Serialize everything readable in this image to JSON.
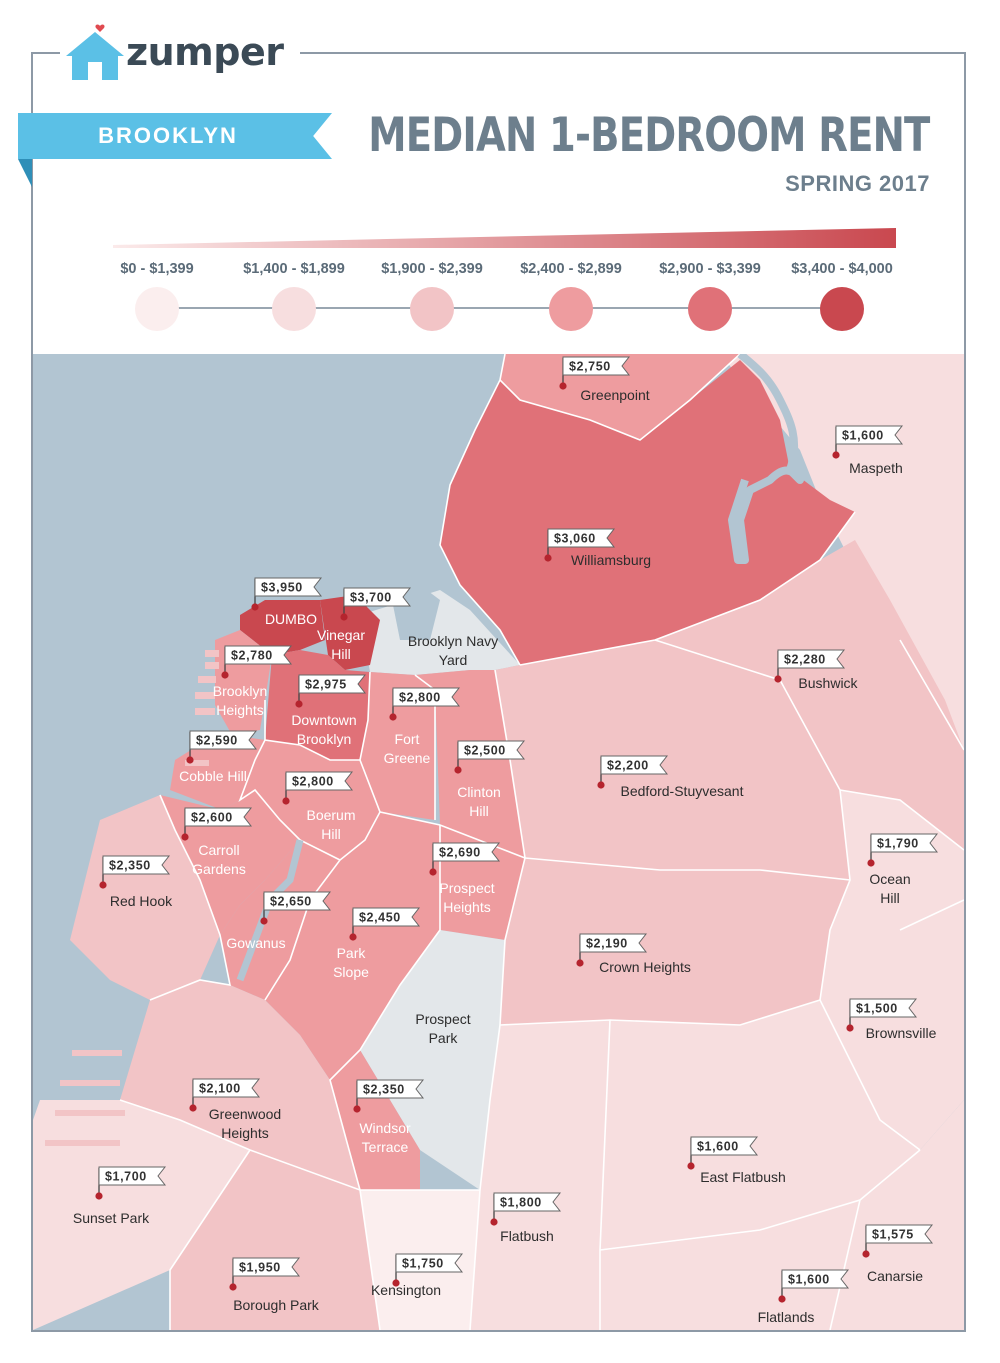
{
  "brand": {
    "name": "zumper",
    "logo_icon": "house-icon",
    "accent": "#5bc0e6",
    "heart_color": "#e04a50"
  },
  "banner": {
    "label": "BROOKLYN"
  },
  "header": {
    "title": "MEDIAN 1-BEDROOM RENT",
    "subtitle": "SPRING 2017"
  },
  "legend": [
    {
      "range": "$0 - $1,399",
      "color": "#fbeeee"
    },
    {
      "range": "$1,400 - $1,899",
      "color": "#f7dedf"
    },
    {
      "range": "$1,900 - $2,399",
      "color": "#f2c4c6"
    },
    {
      "range": "$2,400 - $2,899",
      "color": "#ee9c9f"
    },
    {
      "range": "$2,900 - $3,399",
      "color": "#e07178"
    },
    {
      "range": "$3,400 - $4,000",
      "color": "#c9484f"
    }
  ],
  "map": {
    "water_color": "#b2c5d2",
    "park_color": "#e3e7ea",
    "neighborhoods": [
      {
        "name": "Greenpoint",
        "rent": "$2,750"
      },
      {
        "name": "Maspeth",
        "rent": "$1,600"
      },
      {
        "name": "Williamsburg",
        "rent": "$3,060"
      },
      {
        "name": "DUMBO",
        "rent": "$3,950"
      },
      {
        "name": "Vinegar Hill",
        "rent": "$3,700"
      },
      {
        "name": "Brooklyn Navy Yard",
        "rent": ""
      },
      {
        "name": "Brooklyn Heights",
        "rent": "$2,780"
      },
      {
        "name": "Downtown Brooklyn",
        "rent": "$2,975"
      },
      {
        "name": "Fort Greene",
        "rent": "$2,800"
      },
      {
        "name": "Bushwick",
        "rent": "$2,280"
      },
      {
        "name": "Cobble Hill",
        "rent": "$2,590"
      },
      {
        "name": "Clinton Hill",
        "rent": "$2,500"
      },
      {
        "name": "Bedford-Stuyvesant",
        "rent": "$2,200"
      },
      {
        "name": "Boerum Hill",
        "rent": "$2,800"
      },
      {
        "name": "Carroll Gardens",
        "rent": "$2,600"
      },
      {
        "name": "Ocean Hill",
        "rent": "$1,790"
      },
      {
        "name": "Red Hook",
        "rent": "$2,350"
      },
      {
        "name": "Prospect Heights",
        "rent": "$2,690"
      },
      {
        "name": "Gowanus",
        "rent": "$2,650"
      },
      {
        "name": "Park Slope",
        "rent": "$2,450"
      },
      {
        "name": "Crown Heights",
        "rent": "$2,190"
      },
      {
        "name": "Prospect Park",
        "rent": ""
      },
      {
        "name": "Brownsville",
        "rent": "$1,500"
      },
      {
        "name": "Greenwood Heights",
        "rent": "$2,100"
      },
      {
        "name": "Windsor Terrace",
        "rent": "$2,350"
      },
      {
        "name": "East Flatbush",
        "rent": "$1,600"
      },
      {
        "name": "Sunset Park",
        "rent": "$1,700"
      },
      {
        "name": "Flatbush",
        "rent": "$1,800"
      },
      {
        "name": "Canarsie",
        "rent": "$1,575"
      },
      {
        "name": "Borough Park",
        "rent": "$1,950"
      },
      {
        "name": "Kensington",
        "rent": "$1,750"
      },
      {
        "name": "Flatlands",
        "rent": "$1,600"
      }
    ]
  }
}
